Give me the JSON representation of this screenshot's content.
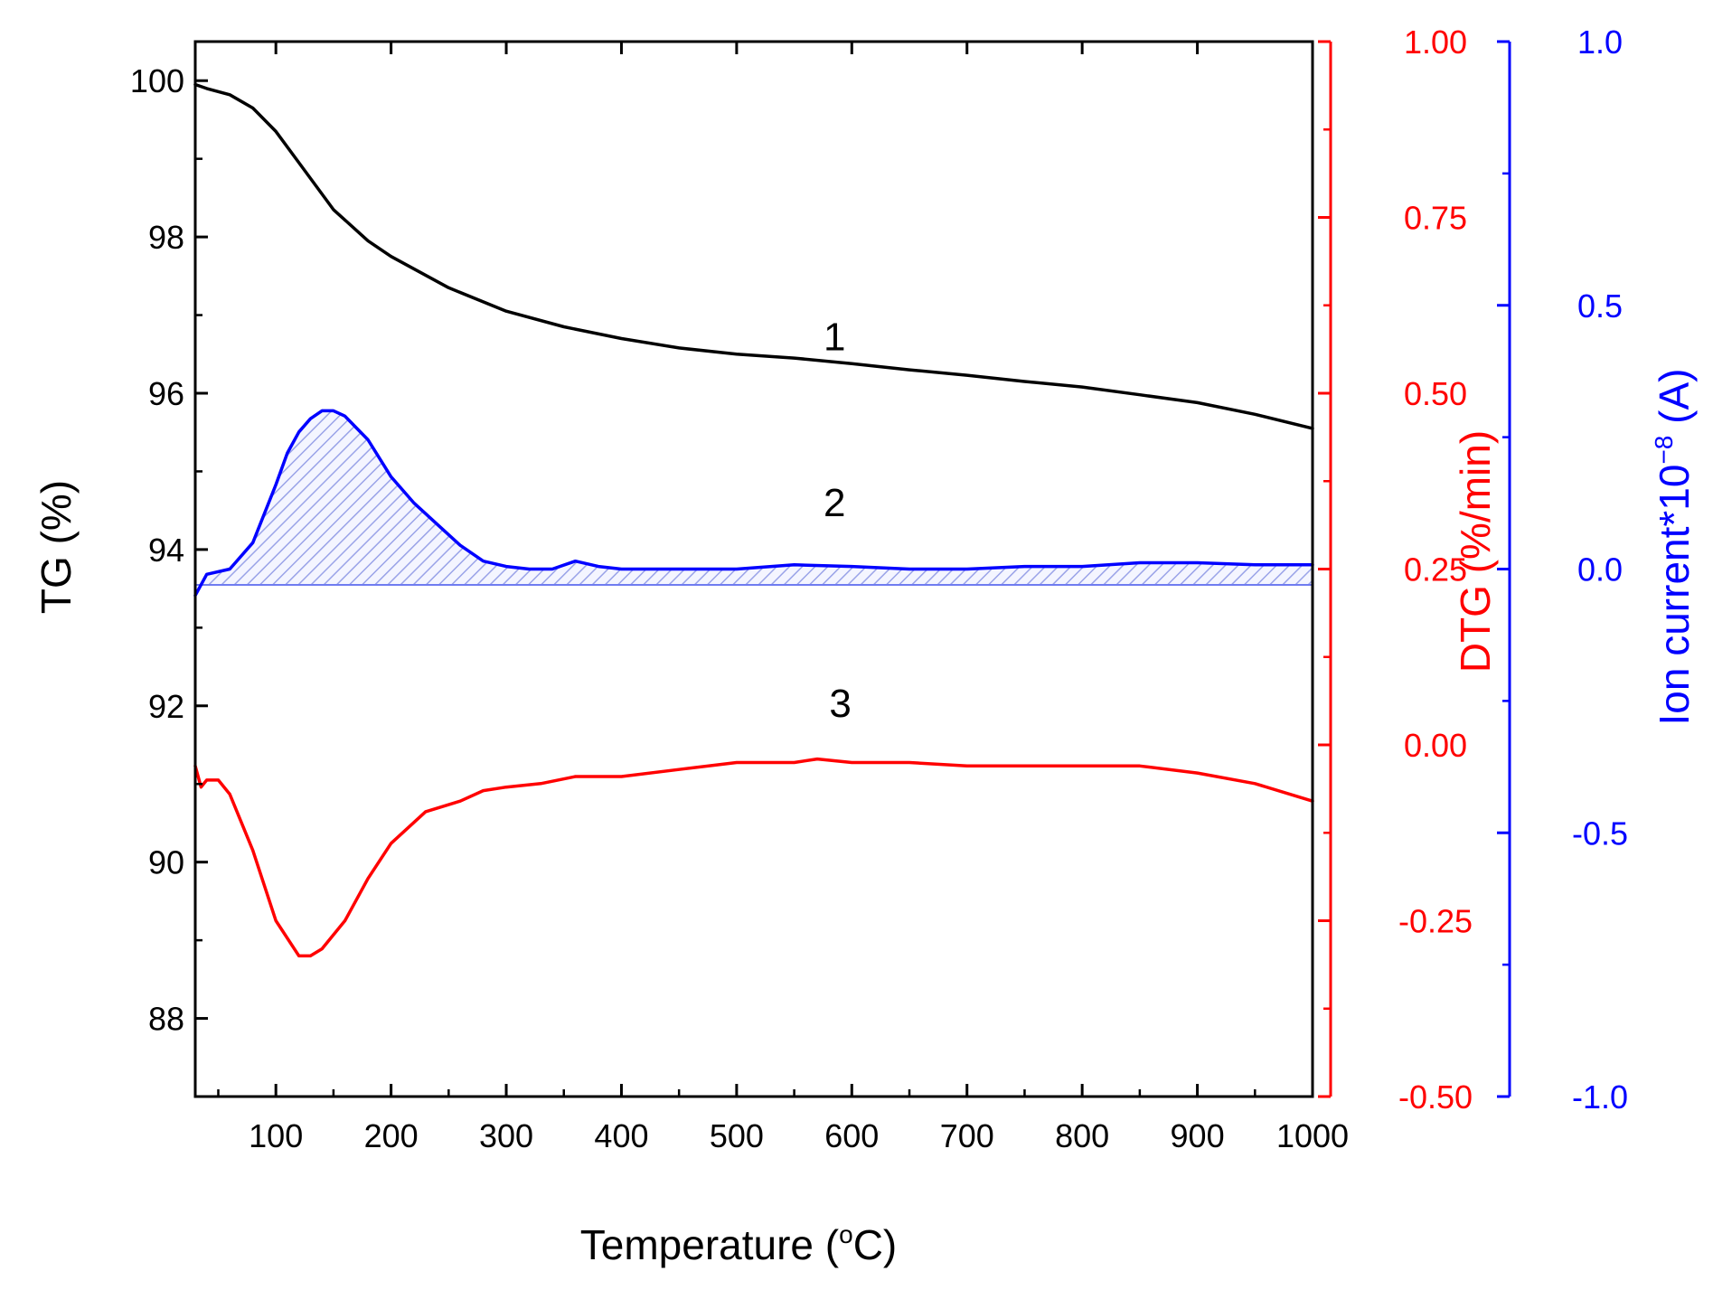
{
  "chart_data": {
    "type": "line",
    "x_axis": {
      "title": "Temperature (oC)",
      "title_main": "Temperature (",
      "title_sup": "o",
      "title_unit": "C)",
      "range": [
        30,
        1000
      ],
      "ticks": [
        100,
        200,
        300,
        400,
        500,
        600,
        700,
        800,
        900,
        1000
      ],
      "tick_labels": [
        "100",
        "200",
        "300",
        "400",
        "500",
        "600",
        "700",
        "800",
        "900",
        "1000"
      ]
    },
    "y_axes": [
      {
        "id": "tg",
        "side": "left",
        "title": "TG (%)",
        "color": "#000000",
        "range": [
          87,
          100.5
        ],
        "ticks": [
          88,
          90,
          92,
          94,
          96,
          98,
          100
        ],
        "tick_labels": [
          "88",
          "90",
          "92",
          "94",
          "96",
          "98",
          "100"
        ]
      },
      {
        "id": "dtg",
        "side": "right",
        "title": "DTG (%/min)",
        "color": "#ff0000",
        "range": [
          -0.5,
          1.0
        ],
        "ticks": [
          -0.5,
          -0.25,
          0.0,
          0.25,
          0.5,
          0.75,
          1.0
        ],
        "tick_labels": [
          "-0.50",
          "-0.25",
          "0.00",
          "0.25",
          "0.50",
          "0.75",
          "1.00"
        ]
      },
      {
        "id": "ion",
        "side": "right-outer",
        "title": "Ion current*10-8 (A)",
        "title_main": "Ion current*10",
        "title_sup": "−8",
        "title_unit": " (A)",
        "color": "#0000ff",
        "range": [
          -1.0,
          1.0
        ],
        "ticks": [
          -1.0,
          -0.5,
          0.0,
          0.5,
          1.0
        ],
        "tick_labels": [
          "-1.0",
          "-0.5",
          "0.0",
          "0.5",
          "1.0"
        ]
      }
    ],
    "series": [
      {
        "name": "1",
        "label": "1",
        "axis": "tg",
        "color": "#000000",
        "label_at": [
          585,
          96.55
        ],
        "x": [
          30,
          40,
          60,
          80,
          100,
          120,
          150,
          180,
          200,
          250,
          300,
          350,
          400,
          450,
          500,
          550,
          600,
          650,
          700,
          750,
          800,
          850,
          900,
          950,
          1000
        ],
        "y": [
          99.95,
          99.9,
          99.82,
          99.65,
          99.35,
          98.95,
          98.35,
          97.95,
          97.75,
          97.35,
          97.05,
          96.85,
          96.7,
          96.58,
          96.5,
          96.45,
          96.38,
          96.3,
          96.23,
          96.15,
          96.08,
          95.98,
          95.88,
          95.73,
          95.55
        ]
      },
      {
        "name": "2",
        "label": "2",
        "axis": "ion",
        "color": "#0000ff",
        "label_at": [
          585,
          0.1
        ],
        "baseline": -0.03,
        "shaded": true,
        "x": [
          30,
          40,
          60,
          80,
          100,
          110,
          120,
          130,
          140,
          150,
          160,
          180,
          200,
          220,
          240,
          260,
          280,
          300,
          320,
          340,
          360,
          380,
          400,
          450,
          500,
          550,
          600,
          650,
          700,
          750,
          800,
          850,
          900,
          950,
          1000
        ],
        "y": [
          -0.05,
          -0.01,
          0.0,
          0.05,
          0.16,
          0.22,
          0.26,
          0.285,
          0.3,
          0.3,
          0.29,
          0.245,
          0.175,
          0.125,
          0.085,
          0.045,
          0.015,
          0.005,
          0.0,
          0.0,
          0.015,
          0.005,
          0.0,
          0.0,
          0.0,
          0.008,
          0.005,
          0.0,
          0.0,
          0.005,
          0.005,
          0.012,
          0.012,
          0.008,
          0.008
        ]
      },
      {
        "name": "3",
        "label": "3",
        "axis": "dtg",
        "color": "#ff0000",
        "label_at": [
          590,
          0.04
        ],
        "x": [
          30,
          35,
          40,
          50,
          60,
          80,
          100,
          120,
          130,
          140,
          160,
          180,
          200,
          230,
          260,
          280,
          300,
          330,
          360,
          400,
          450,
          500,
          550,
          570,
          600,
          650,
          700,
          750,
          800,
          850,
          900,
          950,
          1000
        ],
        "y": [
          -0.03,
          -0.06,
          -0.05,
          -0.05,
          -0.07,
          -0.15,
          -0.25,
          -0.3,
          -0.3,
          -0.29,
          -0.25,
          -0.19,
          -0.14,
          -0.095,
          -0.08,
          -0.065,
          -0.06,
          -0.055,
          -0.045,
          -0.045,
          -0.035,
          -0.025,
          -0.025,
          -0.02,
          -0.025,
          -0.025,
          -0.03,
          -0.03,
          -0.03,
          -0.03,
          -0.04,
          -0.055,
          -0.08
        ]
      }
    ]
  }
}
